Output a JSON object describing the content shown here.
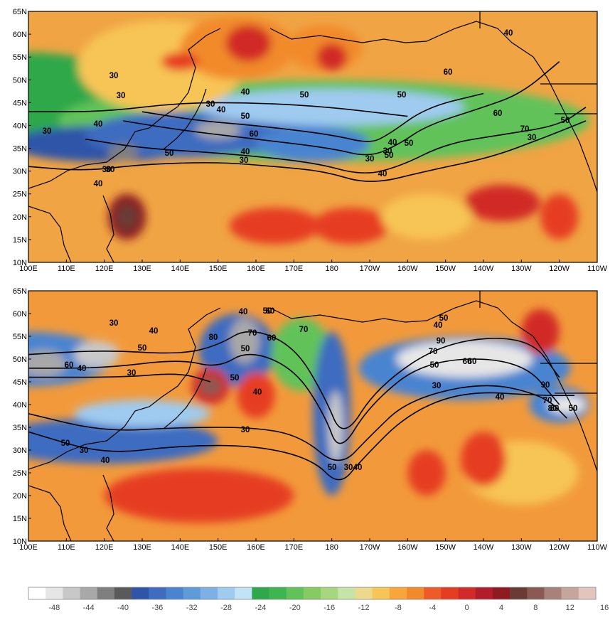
{
  "lat_ticks": [
    "65N",
    "60N",
    "55N",
    "50N",
    "45N",
    "40N",
    "35N",
    "30N",
    "25N",
    "20N",
    "15N",
    "10N"
  ],
  "lon_ticks": [
    "100E",
    "110E",
    "120E",
    "130E",
    "140E",
    "150E",
    "160E",
    "170E",
    "180",
    "170W",
    "160W",
    "150W",
    "140W",
    "130W",
    "120W",
    "110W"
  ],
  "colorbar": {
    "colors": [
      "#ffffff",
      "#e6e6e6",
      "#c8c8c8",
      "#a8a8a8",
      "#7f7f7f",
      "#5a5a5a",
      "#2f55a8",
      "#3d6cc0",
      "#4a84d0",
      "#5f9ad9",
      "#7db1e6",
      "#9fcbf0",
      "#c2e2f5",
      "#2ea84a",
      "#3fb54f",
      "#62c25a",
      "#86cb62",
      "#a6d67d",
      "#c6e4a8",
      "#ecd98b",
      "#f7c555",
      "#f9a53a",
      "#f28a2c",
      "#ef5b26",
      "#e63c22",
      "#d12a27",
      "#b31d2a",
      "#8f1a22",
      "#6a3a35",
      "#8a5a52",
      "#a8827a",
      "#c6a69c",
      "#e2c6be"
    ],
    "labels": [
      "-48",
      "-44",
      "-40",
      "-36",
      "-32",
      "-28",
      "-24",
      "-20",
      "-16",
      "-12",
      "-8",
      "-4",
      "0",
      "4",
      "8",
      "12",
      "16"
    ]
  },
  "panels": [
    {
      "background": "#f0a444",
      "contour_labels": [
        "30",
        "30",
        "30",
        "30",
        "40",
        "40",
        "50",
        "50",
        "60",
        "60",
        "70",
        "30",
        "40",
        "30",
        "40",
        "40",
        "50",
        "30",
        "40",
        "50",
        "60",
        "50",
        "40",
        "30",
        "30",
        "40",
        "50",
        "30",
        "50"
      ],
      "field_patches": [
        {
          "lon": 100,
          "lat": 46,
          "rlon": 30,
          "rlat": 10,
          "color": "#2ea84a"
        },
        {
          "lon": 178,
          "lat": 41,
          "rlon": 70,
          "rlat": 9,
          "color": "#62c25a"
        },
        {
          "lon": 120,
          "lat": 36,
          "rlon": 25,
          "rlat": 4,
          "color": "#2f55a8"
        },
        {
          "lon": 140,
          "lat": 38,
          "rlon": 25,
          "rlat": 5,
          "color": "#3d6cc0"
        },
        {
          "lon": 160,
          "lat": 38,
          "rlon": 20,
          "rlat": 4,
          "color": "#3d6cc0"
        },
        {
          "lon": 175,
          "lat": 36,
          "rlon": 15,
          "rlat": 4,
          "color": "#4a84d0"
        },
        {
          "lon": 150,
          "lat": 39,
          "rlon": 6,
          "rlat": 2,
          "color": "#a8a8a8"
        },
        {
          "lon": 125,
          "lat": 34,
          "rlon": 4,
          "rlat": 2,
          "color": "#7f7f7f"
        },
        {
          "lon": 180,
          "lat": 44,
          "rlon": 35,
          "rlat": 4,
          "color": "#9fcbf0"
        },
        {
          "lon": 135,
          "lat": 53,
          "rlon": 22,
          "rlat": 10,
          "color": "#f7c555"
        },
        {
          "lon": 155,
          "lat": 57,
          "rlon": 15,
          "rlat": 7,
          "color": "#f28a2c"
        },
        {
          "lon": 158,
          "lat": 58,
          "rlon": 6,
          "rlat": 4,
          "color": "#d12a27"
        },
        {
          "lon": 178,
          "lat": 57,
          "rlon": 10,
          "rlat": 5,
          "color": "#f28a2c"
        },
        {
          "lon": 180,
          "lat": 55,
          "rlon": 4,
          "rlat": 3,
          "color": "#d12a27"
        },
        {
          "lon": 140,
          "lat": 54,
          "rlon": 5,
          "rlat": 2,
          "color": "#e63c22"
        },
        {
          "lon": 126,
          "lat": 20,
          "rlon": 5,
          "rlat": 5,
          "color": "#8f1a22"
        },
        {
          "lon": 126,
          "lat": 20,
          "rlon": 3,
          "rlat": 3,
          "color": "#6a3a35"
        },
        {
          "lon": 165,
          "lat": 18,
          "rlon": 12,
          "rlat": 4,
          "color": "#e63c22"
        },
        {
          "lon": 185,
          "lat": 18,
          "rlon": 10,
          "rlat": 4,
          "color": "#e63c22"
        },
        {
          "lon": 225,
          "lat": 23,
          "rlon": 10,
          "rlat": 4,
          "color": "#d12a27"
        },
        {
          "lon": 205,
          "lat": 20,
          "rlon": 12,
          "rlat": 5,
          "color": "#f7c555"
        },
        {
          "lon": 240,
          "lat": 20,
          "rlon": 5,
          "rlat": 5,
          "color": "#e63c22"
        }
      ],
      "contours": [
        [
          [
            100,
            31
          ],
          [
            115,
            30
          ],
          [
            130,
            31.5
          ],
          [
            150,
            32
          ],
          [
            165,
            31
          ],
          [
            178,
            30
          ],
          [
            190,
            27
          ],
          [
            205,
            30
          ],
          [
            222,
            33
          ],
          [
            235,
            37
          ],
          [
            247,
            41
          ]
        ],
        [
          [
            115,
            37
          ],
          [
            130,
            35
          ],
          [
            150,
            34
          ],
          [
            175,
            32
          ],
          [
            188,
            29
          ],
          [
            198,
            31
          ],
          [
            210,
            36
          ],
          [
            225,
            38
          ],
          [
            240,
            40
          ],
          [
            247,
            44
          ]
        ],
        [
          [
            125,
            41
          ],
          [
            140,
            39
          ],
          [
            160,
            37
          ],
          [
            180,
            35
          ],
          [
            190,
            33
          ],
          [
            198,
            36
          ],
          [
            205,
            40
          ],
          [
            220,
            44
          ],
          [
            230,
            47
          ],
          [
            240,
            54
          ]
        ],
        [
          [
            130,
            43
          ],
          [
            145,
            41
          ],
          [
            160,
            40
          ],
          [
            180,
            38
          ],
          [
            190,
            36
          ],
          [
            195,
            38
          ],
          [
            205,
            44
          ],
          [
            220,
            47
          ]
        ],
        [
          [
            100,
            43
          ],
          [
            120,
            43
          ],
          [
            140,
            45
          ],
          [
            160,
            45
          ],
          [
            180,
            44
          ],
          [
            200,
            42
          ]
        ]
      ]
    },
    {
      "background": "#f29a3b",
      "contour_labels": [
        "30",
        "40",
        "50",
        "60",
        "40",
        "30",
        "80",
        "70",
        "60",
        "40",
        "50",
        "50",
        "30",
        "70",
        "50",
        "40",
        "60",
        "50",
        "40",
        "50",
        "70",
        "30",
        "40",
        "60",
        "80",
        "70",
        "90",
        "50",
        "30",
        "90",
        "80",
        "40",
        "60",
        "50",
        "40",
        "30",
        "50"
      ],
      "field_patches": [
        {
          "lon": 100,
          "lat": 50,
          "rlon": 22,
          "rlat": 6,
          "color": "#4a84d0"
        },
        {
          "lon": 104,
          "lat": 49,
          "rlon": 6,
          "rlat": 3,
          "color": "#a8a8a8"
        },
        {
          "lon": 118,
          "lat": 51,
          "rlon": 6,
          "rlat": 3,
          "color": "#c8c8c8"
        },
        {
          "lon": 120,
          "lat": 32,
          "rlon": 30,
          "rlat": 5,
          "color": "#3d6cc0"
        },
        {
          "lon": 130,
          "lat": 38,
          "rlon": 18,
          "rlat": 3,
          "color": "#9fcbf0"
        },
        {
          "lon": 155,
          "lat": 52,
          "rlon": 10,
          "rlat": 8,
          "color": "#3d6cc0"
        },
        {
          "lon": 157,
          "lat": 54,
          "rlon": 4,
          "rlat": 5,
          "color": "#a8a8a8"
        },
        {
          "lon": 172,
          "lat": 51,
          "rlon": 8,
          "rlat": 8,
          "color": "#62c25a"
        },
        {
          "lon": 180,
          "lat": 38,
          "rlon": 5,
          "rlat": 18,
          "color": "#3d6cc0"
        },
        {
          "lon": 181,
          "lat": 35,
          "rlon": 2,
          "rlat": 8,
          "color": "#c8c8c8"
        },
        {
          "lon": 215,
          "lat": 48,
          "rlon": 28,
          "rlat": 7,
          "color": "#4a84d0"
        },
        {
          "lon": 215,
          "lat": 50,
          "rlon": 18,
          "rlat": 4,
          "color": "#e6e6e6"
        },
        {
          "lon": 240,
          "lat": 40,
          "rlon": 8,
          "rlat": 4,
          "color": "#4a84d0"
        },
        {
          "lon": 242,
          "lat": 40,
          "rlon": 5,
          "rlat": 2,
          "color": "#e6e6e6"
        },
        {
          "lon": 148,
          "lat": 44,
          "rlon": 5,
          "rlat": 4,
          "color": "#d12a27"
        },
        {
          "lon": 148,
          "lat": 44,
          "rlon": 3,
          "rlat": 2,
          "color": "#8a5a52"
        },
        {
          "lon": 160,
          "lat": 42,
          "rlon": 5,
          "rlat": 5,
          "color": "#e63c22"
        },
        {
          "lon": 235,
          "lat": 56,
          "rlon": 5,
          "rlat": 5,
          "color": "#d12a27"
        },
        {
          "lon": 145,
          "lat": 20,
          "rlon": 25,
          "rlat": 6,
          "color": "#e63c22"
        },
        {
          "lon": 230,
          "lat": 25,
          "rlon": 15,
          "rlat": 7,
          "color": "#f7c555"
        },
        {
          "lon": 220,
          "lat": 28,
          "rlon": 6,
          "rlat": 6,
          "color": "#e63c22"
        },
        {
          "lon": 205,
          "lat": 25,
          "rlon": 5,
          "rlat": 5,
          "color": "#e63c22"
        }
      ],
      "contours": [
        [
          [
            100,
            34
          ],
          [
            120,
            29
          ],
          [
            140,
            31
          ],
          [
            160,
            31
          ],
          [
            175,
            28
          ],
          [
            182,
            22
          ],
          [
            188,
            28
          ],
          [
            200,
            38
          ],
          [
            215,
            43
          ],
          [
            235,
            42
          ],
          [
            244,
            42
          ]
        ],
        [
          [
            100,
            38
          ],
          [
            120,
            34
          ],
          [
            140,
            35
          ],
          [
            160,
            35
          ],
          [
            172,
            33
          ],
          [
            182,
            26
          ],
          [
            190,
            33
          ],
          [
            200,
            41
          ],
          [
            220,
            45
          ],
          [
            236,
            42
          ],
          [
            242,
            37
          ]
        ],
        [
          [
            100,
            48
          ],
          [
            120,
            48
          ],
          [
            140,
            50
          ],
          [
            150,
            48
          ],
          [
            158,
            52
          ],
          [
            170,
            48
          ],
          [
            178,
            38
          ],
          [
            182,
            29
          ],
          [
            190,
            40
          ],
          [
            205,
            50
          ],
          [
            230,
            50
          ],
          [
            240,
            40
          ]
        ],
        [
          [
            100,
            51
          ],
          [
            120,
            52
          ],
          [
            140,
            51
          ],
          [
            150,
            53
          ],
          [
            158,
            57
          ],
          [
            170,
            53
          ],
          [
            178,
            42
          ],
          [
            183,
            32
          ],
          [
            192,
            44
          ],
          [
            210,
            54
          ],
          [
            232,
            55
          ],
          [
            240,
            46
          ]
        ],
        [
          [
            100,
            46
          ],
          [
            125,
            46
          ],
          [
            140,
            47
          ],
          [
            148,
            45
          ]
        ]
      ]
    }
  ]
}
